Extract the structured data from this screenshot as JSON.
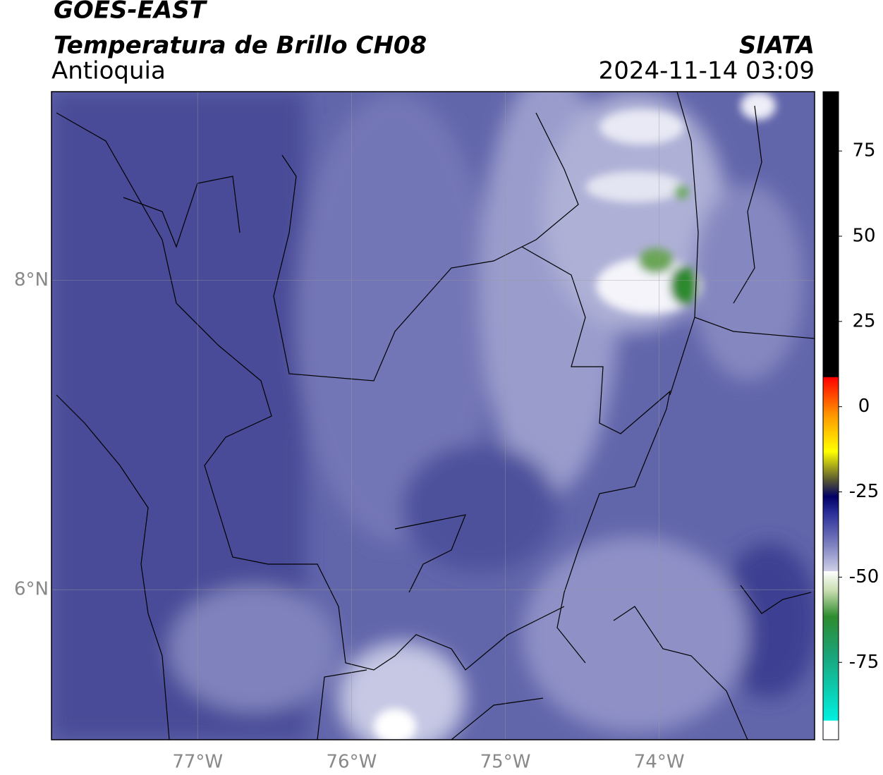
{
  "header": {
    "title": "GOES-EAST",
    "subtitle": "Temperatura de Brillo CH08",
    "region": "Antioquia",
    "source": "SIATA",
    "datetime": "2024-11-14 03:09"
  },
  "map": {
    "xlim": [
      -77.95,
      -72.99
    ],
    "ylim": [
      5.03,
      9.22
    ],
    "xticks": [
      {
        "value": -77,
        "label": "77°W"
      },
      {
        "value": -76,
        "label": "76°W"
      },
      {
        "value": -75,
        "label": "75°W"
      },
      {
        "value": -74,
        "label": "74°W"
      }
    ],
    "yticks": [
      {
        "value": 6,
        "label": "6°N"
      },
      {
        "value": 8,
        "label": "8°N"
      }
    ],
    "grid": true
  },
  "colorbar": {
    "lim": [
      -97.7,
      92.4
    ],
    "ticks": [
      75,
      50,
      25,
      0,
      -25,
      -50,
      -75
    ]
  }
}
